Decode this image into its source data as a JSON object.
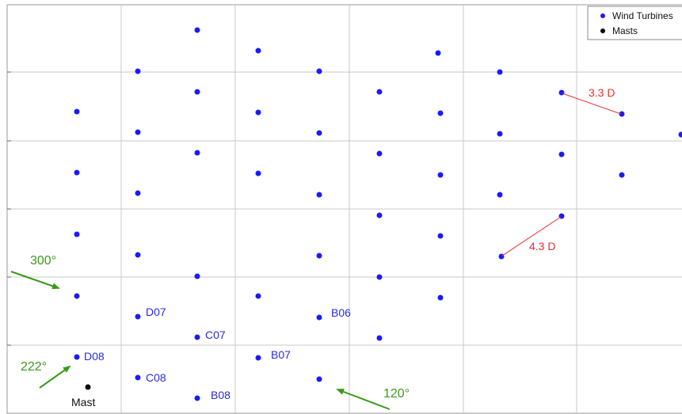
{
  "colors": {
    "turbine": "#1a1aff",
    "mast": "#000000",
    "grid": "#c8c8c8",
    "frame": "#9a9a9a",
    "distance": "#ee2b2b",
    "wind_arrow": "#3a9a1a",
    "turbine_label": "#2b2bdc"
  },
  "legend": {
    "turbines_label": "Wind Turbines",
    "masts_label": "Masts",
    "placement": "top-right"
  },
  "turbine_labels": {
    "d07": "D07",
    "c07": "C07",
    "b06": "B06",
    "d08": "D08",
    "c08": "C08",
    "b08": "B08",
    "b07": "B07"
  },
  "mast_label": "Mast",
  "distances": {
    "first": "3.3 D",
    "second": "4.3 D"
  },
  "wind_directions": {
    "first": "300°",
    "second": "222°",
    "third": "120°"
  }
}
